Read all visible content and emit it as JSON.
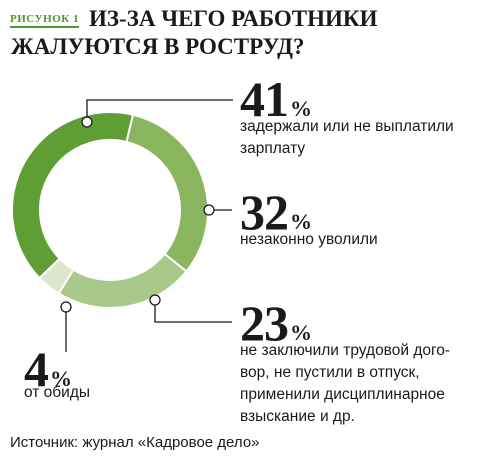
{
  "figure_label": "РИСУНОК 1",
  "title_line1": "ИЗ-ЗА ЧЕГО РАБОТНИКИ",
  "title_line2": "ЖАЛУЮТСЯ В РОСТРУД?",
  "source": "Источник: журнал «Кадровое дело»",
  "chart_data": {
    "type": "pie",
    "title": "ИЗ-ЗА ЧЕГО РАБОТНИКИ ЖАЛУЮТСЯ В РОСТРУД?",
    "unit": "%",
    "slices": [
      {
        "value": 41,
        "label": "41",
        "description": "задержали или не выплатили зарплату",
        "color": "#5e9e34"
      },
      {
        "value": 32,
        "label": "32",
        "description": "незаконно уволили",
        "color": "#88b55e"
      },
      {
        "value": 23,
        "label": "23",
        "description": "не заключили трудовой договор, не пустили в отпуск, применили дисциплинарное взыскание и др.",
        "color": "#a8c98a"
      },
      {
        "value": 4,
        "label": "4",
        "description": "от обиды",
        "color": "#dbe8cd"
      }
    ]
  },
  "slice_text": [
    {
      "pct": "41",
      "sign": "%",
      "desc": "задержали или не выплатили<br>зарплату"
    },
    {
      "pct": "32",
      "sign": "%",
      "desc": "незаконно уволили"
    },
    {
      "pct": "23",
      "sign": "%",
      "desc": "не заключили трудовой дого-<br>вор, не пустили в отпуск,<br>применили дисциплинарное<br>взыскание и др."
    },
    {
      "pct": "4",
      "sign": "%",
      "desc": "от обиды"
    }
  ]
}
